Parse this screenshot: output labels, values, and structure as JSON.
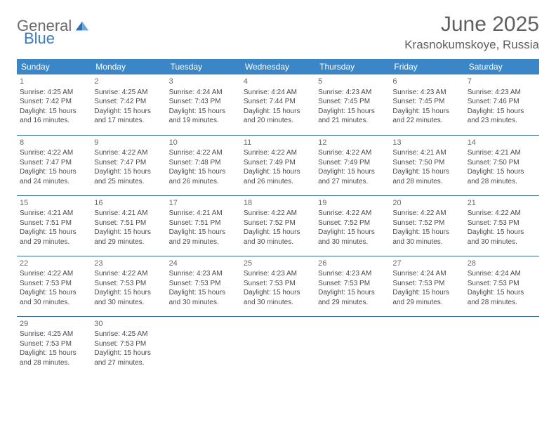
{
  "logo": {
    "word1": "General",
    "word2": "Blue",
    "mark_color": "#2f6fb3"
  },
  "title": "June 2025",
  "location": "Krasnokumskoye, Russia",
  "header_bg": "#3b86c7",
  "header_text": "#ffffff",
  "row_border": "#3b6ea0",
  "daynames": [
    "Sunday",
    "Monday",
    "Tuesday",
    "Wednesday",
    "Thursday",
    "Friday",
    "Saturday"
  ],
  "weeks": [
    [
      {
        "n": "1",
        "sr": "Sunrise: 4:25 AM",
        "ss": "Sunset: 7:42 PM",
        "d1": "Daylight: 15 hours",
        "d2": "and 16 minutes."
      },
      {
        "n": "2",
        "sr": "Sunrise: 4:25 AM",
        "ss": "Sunset: 7:42 PM",
        "d1": "Daylight: 15 hours",
        "d2": "and 17 minutes."
      },
      {
        "n": "3",
        "sr": "Sunrise: 4:24 AM",
        "ss": "Sunset: 7:43 PM",
        "d1": "Daylight: 15 hours",
        "d2": "and 19 minutes."
      },
      {
        "n": "4",
        "sr": "Sunrise: 4:24 AM",
        "ss": "Sunset: 7:44 PM",
        "d1": "Daylight: 15 hours",
        "d2": "and 20 minutes."
      },
      {
        "n": "5",
        "sr": "Sunrise: 4:23 AM",
        "ss": "Sunset: 7:45 PM",
        "d1": "Daylight: 15 hours",
        "d2": "and 21 minutes."
      },
      {
        "n": "6",
        "sr": "Sunrise: 4:23 AM",
        "ss": "Sunset: 7:45 PM",
        "d1": "Daylight: 15 hours",
        "d2": "and 22 minutes."
      },
      {
        "n": "7",
        "sr": "Sunrise: 4:23 AM",
        "ss": "Sunset: 7:46 PM",
        "d1": "Daylight: 15 hours",
        "d2": "and 23 minutes."
      }
    ],
    [
      {
        "n": "8",
        "sr": "Sunrise: 4:22 AM",
        "ss": "Sunset: 7:47 PM",
        "d1": "Daylight: 15 hours",
        "d2": "and 24 minutes."
      },
      {
        "n": "9",
        "sr": "Sunrise: 4:22 AM",
        "ss": "Sunset: 7:47 PM",
        "d1": "Daylight: 15 hours",
        "d2": "and 25 minutes."
      },
      {
        "n": "10",
        "sr": "Sunrise: 4:22 AM",
        "ss": "Sunset: 7:48 PM",
        "d1": "Daylight: 15 hours",
        "d2": "and 26 minutes."
      },
      {
        "n": "11",
        "sr": "Sunrise: 4:22 AM",
        "ss": "Sunset: 7:49 PM",
        "d1": "Daylight: 15 hours",
        "d2": "and 26 minutes."
      },
      {
        "n": "12",
        "sr": "Sunrise: 4:22 AM",
        "ss": "Sunset: 7:49 PM",
        "d1": "Daylight: 15 hours",
        "d2": "and 27 minutes."
      },
      {
        "n": "13",
        "sr": "Sunrise: 4:21 AM",
        "ss": "Sunset: 7:50 PM",
        "d1": "Daylight: 15 hours",
        "d2": "and 28 minutes."
      },
      {
        "n": "14",
        "sr": "Sunrise: 4:21 AM",
        "ss": "Sunset: 7:50 PM",
        "d1": "Daylight: 15 hours",
        "d2": "and 28 minutes."
      }
    ],
    [
      {
        "n": "15",
        "sr": "Sunrise: 4:21 AM",
        "ss": "Sunset: 7:51 PM",
        "d1": "Daylight: 15 hours",
        "d2": "and 29 minutes."
      },
      {
        "n": "16",
        "sr": "Sunrise: 4:21 AM",
        "ss": "Sunset: 7:51 PM",
        "d1": "Daylight: 15 hours",
        "d2": "and 29 minutes."
      },
      {
        "n": "17",
        "sr": "Sunrise: 4:21 AM",
        "ss": "Sunset: 7:51 PM",
        "d1": "Daylight: 15 hours",
        "d2": "and 29 minutes."
      },
      {
        "n": "18",
        "sr": "Sunrise: 4:22 AM",
        "ss": "Sunset: 7:52 PM",
        "d1": "Daylight: 15 hours",
        "d2": "and 30 minutes."
      },
      {
        "n": "19",
        "sr": "Sunrise: 4:22 AM",
        "ss": "Sunset: 7:52 PM",
        "d1": "Daylight: 15 hours",
        "d2": "and 30 minutes."
      },
      {
        "n": "20",
        "sr": "Sunrise: 4:22 AM",
        "ss": "Sunset: 7:52 PM",
        "d1": "Daylight: 15 hours",
        "d2": "and 30 minutes."
      },
      {
        "n": "21",
        "sr": "Sunrise: 4:22 AM",
        "ss": "Sunset: 7:53 PM",
        "d1": "Daylight: 15 hours",
        "d2": "and 30 minutes."
      }
    ],
    [
      {
        "n": "22",
        "sr": "Sunrise: 4:22 AM",
        "ss": "Sunset: 7:53 PM",
        "d1": "Daylight: 15 hours",
        "d2": "and 30 minutes."
      },
      {
        "n": "23",
        "sr": "Sunrise: 4:22 AM",
        "ss": "Sunset: 7:53 PM",
        "d1": "Daylight: 15 hours",
        "d2": "and 30 minutes."
      },
      {
        "n": "24",
        "sr": "Sunrise: 4:23 AM",
        "ss": "Sunset: 7:53 PM",
        "d1": "Daylight: 15 hours",
        "d2": "and 30 minutes."
      },
      {
        "n": "25",
        "sr": "Sunrise: 4:23 AM",
        "ss": "Sunset: 7:53 PM",
        "d1": "Daylight: 15 hours",
        "d2": "and 30 minutes."
      },
      {
        "n": "26",
        "sr": "Sunrise: 4:23 AM",
        "ss": "Sunset: 7:53 PM",
        "d1": "Daylight: 15 hours",
        "d2": "and 29 minutes."
      },
      {
        "n": "27",
        "sr": "Sunrise: 4:24 AM",
        "ss": "Sunset: 7:53 PM",
        "d1": "Daylight: 15 hours",
        "d2": "and 29 minutes."
      },
      {
        "n": "28",
        "sr": "Sunrise: 4:24 AM",
        "ss": "Sunset: 7:53 PM",
        "d1": "Daylight: 15 hours",
        "d2": "and 28 minutes."
      }
    ],
    [
      {
        "n": "29",
        "sr": "Sunrise: 4:25 AM",
        "ss": "Sunset: 7:53 PM",
        "d1": "Daylight: 15 hours",
        "d2": "and 28 minutes."
      },
      {
        "n": "30",
        "sr": "Sunrise: 4:25 AM",
        "ss": "Sunset: 7:53 PM",
        "d1": "Daylight: 15 hours",
        "d2": "and 27 minutes."
      },
      null,
      null,
      null,
      null,
      null
    ]
  ]
}
